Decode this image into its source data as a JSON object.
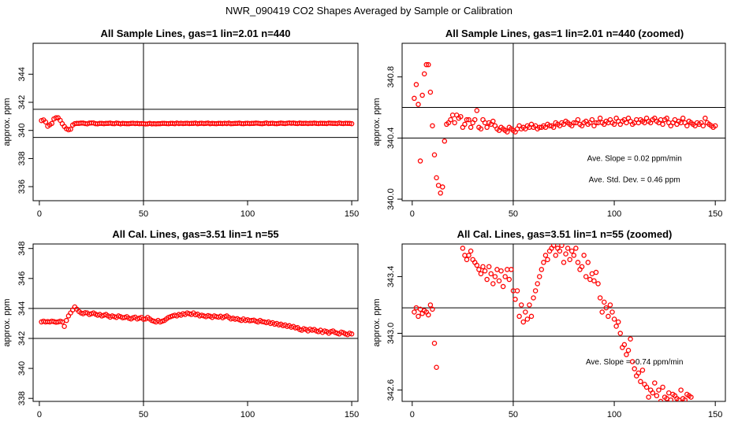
{
  "main_title": "NWR_090419  CO2 Shapes Averaged by Sample or Calibration",
  "chart_data": [
    {
      "type": "scatter",
      "title": "All Sample Lines, gas=1 lin=2.01 n=440",
      "ylabel": "approx. ppm",
      "xlim": [
        -3,
        153
      ],
      "ylim": [
        335,
        346.2
      ],
      "xticks": [
        0,
        50,
        100,
        150
      ],
      "xtick_labels": [
        "0",
        "50",
        "100",
        "150"
      ],
      "yticks": [
        336,
        338,
        340,
        342,
        344
      ],
      "ytick_labels": [
        "336",
        "338",
        "340",
        "342",
        "344"
      ],
      "hlines": [
        339.5,
        341.5
      ],
      "vlines": [
        50
      ],
      "color": "#ff0000",
      "x": [
        1,
        2,
        3,
        4,
        5,
        6,
        7,
        8,
        9,
        10,
        11,
        12,
        13,
        14,
        15,
        16,
        17,
        18,
        19,
        20,
        21,
        22,
        23,
        24,
        25,
        26,
        27,
        28,
        29,
        30,
        31,
        32,
        33,
        34,
        35,
        36,
        37,
        38,
        39,
        40,
        41,
        42,
        43,
        44,
        45,
        46,
        47,
        48,
        49,
        50,
        51,
        52,
        53,
        54,
        55,
        56,
        57,
        58,
        59,
        60,
        61,
        62,
        63,
        64,
        65,
        66,
        67,
        68,
        69,
        70,
        71,
        72,
        73,
        74,
        75,
        76,
        77,
        78,
        79,
        80,
        81,
        82,
        83,
        84,
        85,
        86,
        87,
        88,
        89,
        90,
        91,
        92,
        93,
        94,
        95,
        96,
        97,
        98,
        99,
        100,
        101,
        102,
        103,
        104,
        105,
        106,
        107,
        108,
        109,
        110,
        111,
        112,
        113,
        114,
        115,
        116,
        117,
        118,
        119,
        120,
        121,
        122,
        123,
        124,
        125,
        126,
        127,
        128,
        129,
        130,
        131,
        132,
        133,
        134,
        135,
        136,
        137,
        138,
        139,
        140,
        141,
        142,
        143,
        144,
        145,
        146,
        147,
        148,
        149,
        150
      ],
      "y": [
        340.7,
        340.75,
        340.6,
        340.3,
        340.4,
        340.5,
        340.82,
        340.9,
        340.9,
        340.72,
        340.48,
        340.28,
        340.12,
        340.05,
        340.09,
        340.38,
        340.48,
        340.5,
        340.5,
        340.52,
        340.52,
        340.49,
        340.47,
        340.52,
        340.53,
        340.53,
        340.48,
        340.47,
        340.5,
        340.5,
        340.48,
        340.5,
        340.5,
        340.52,
        340.49,
        340.48,
        340.52,
        340.5,
        340.47,
        340.5,
        340.49,
        340.48,
        340.48,
        340.5,
        340.51,
        340.49,
        340.5,
        340.48,
        340.49,
        340.48,
        340.46,
        340.47,
        340.5,
        340.47,
        340.48,
        340.47,
        340.48,
        340.48,
        340.5,
        340.5,
        340.49,
        340.48,
        340.5,
        340.5,
        340.48,
        340.52,
        340.49,
        340.51,
        340.49,
        340.5,
        340.51,
        340.49,
        340.5,
        340.5,
        340.52,
        340.48,
        340.5,
        340.51,
        340.49,
        340.5,
        340.52,
        340.48,
        340.5,
        340.49,
        340.48,
        340.5,
        340.5,
        340.49,
        340.51,
        340.49,
        340.52,
        340.48,
        340.49,
        340.5,
        340.5,
        340.52,
        340.49,
        340.48,
        340.5,
        340.51,
        340.49,
        340.5,
        340.5,
        340.52,
        340.51,
        340.49,
        340.48,
        340.5,
        340.53,
        340.49,
        340.5,
        340.51,
        340.49,
        340.48,
        340.5,
        340.52,
        340.5,
        340.49,
        340.51,
        340.53,
        340.51,
        340.52,
        340.5,
        340.49,
        340.52,
        340.5,
        340.5,
        340.51,
        340.49,
        340.51,
        340.5,
        340.52,
        340.5,
        340.49,
        340.51,
        340.5,
        340.5,
        340.49,
        340.52,
        340.51,
        340.5,
        340.5,
        340.49,
        340.53,
        340.5,
        340.49,
        340.51,
        340.5,
        340.5,
        340.48
      ]
    },
    {
      "type": "scatter",
      "title": "All Sample Lines, gas=1 lin=2.01 n=440 (zoomed)",
      "ylabel": "approx. ppm",
      "xlim": [
        -5,
        155
      ],
      "ylim": [
        339.99,
        341.02
      ],
      "xticks": [
        0,
        50,
        100,
        150
      ],
      "xtick_labels": [
        "0",
        "50",
        "100",
        "150"
      ],
      "yticks": [
        340.0,
        340.4,
        340.8
      ],
      "ytick_labels": [
        "340.0",
        "340.4",
        "340.8"
      ],
      "hlines": [
        340.4,
        340.6
      ],
      "vlines": [
        50
      ],
      "color": "#ff0000",
      "annotations": [
        {
          "text": "Ave. Slope =  0.02  ppm/min",
          "x": 110,
          "y": 340.25
        },
        {
          "text": "Ave. Std. Dev. =  0.46  ppm",
          "x": 110,
          "y": 340.11
        }
      ],
      "x": [
        1,
        2,
        3,
        4,
        5,
        6,
        7,
        8,
        9,
        10,
        11,
        12,
        13,
        14,
        15,
        16,
        17,
        18,
        19,
        20,
        21,
        22,
        23,
        24,
        25,
        26,
        27,
        28,
        29,
        30,
        31,
        32,
        33,
        34,
        35,
        36,
        37,
        38,
        39,
        40,
        41,
        42,
        43,
        44,
        45,
        46,
        47,
        48,
        49,
        50,
        51,
        52,
        53,
        54,
        55,
        56,
        57,
        58,
        59,
        60,
        61,
        62,
        63,
        64,
        65,
        66,
        67,
        68,
        69,
        70,
        71,
        72,
        73,
        74,
        75,
        76,
        77,
        78,
        79,
        80,
        81,
        82,
        83,
        84,
        85,
        86,
        87,
        88,
        89,
        90,
        91,
        92,
        93,
        94,
        95,
        96,
        97,
        98,
        99,
        100,
        101,
        102,
        103,
        104,
        105,
        106,
        107,
        108,
        109,
        110,
        111,
        112,
        113,
        114,
        115,
        116,
        117,
        118,
        119,
        120,
        121,
        122,
        123,
        124,
        125,
        126,
        127,
        128,
        129,
        130,
        131,
        132,
        133,
        134,
        135,
        136,
        137,
        138,
        139,
        140,
        141,
        142,
        143,
        144,
        145,
        146,
        147,
        148,
        149,
        150
      ],
      "y": [
        340.66,
        340.75,
        340.62,
        340.25,
        340.68,
        340.82,
        340.88,
        340.88,
        340.7,
        340.48,
        340.29,
        340.14,
        340.09,
        340.04,
        340.08,
        340.38,
        340.49,
        340.5,
        340.52,
        340.55,
        340.5,
        340.55,
        340.53,
        340.54,
        340.47,
        340.49,
        340.52,
        340.52,
        340.47,
        340.5,
        340.52,
        340.58,
        340.47,
        340.46,
        340.52,
        340.5,
        340.47,
        340.5,
        340.49,
        340.51,
        340.48,
        340.46,
        340.45,
        340.47,
        340.46,
        340.45,
        340.44,
        340.47,
        340.46,
        340.45,
        340.44,
        340.46,
        340.48,
        340.46,
        340.47,
        340.46,
        340.48,
        340.47,
        340.49,
        340.47,
        340.48,
        340.46,
        340.47,
        340.47,
        340.48,
        340.47,
        340.49,
        340.48,
        340.48,
        340.47,
        340.5,
        340.49,
        340.48,
        340.5,
        340.49,
        340.51,
        340.5,
        340.49,
        340.48,
        340.5,
        340.5,
        340.52,
        340.49,
        340.48,
        340.5,
        340.51,
        340.49,
        340.5,
        340.52,
        340.48,
        340.5,
        340.5,
        340.53,
        340.5,
        340.49,
        340.51,
        340.5,
        340.52,
        340.5,
        340.49,
        340.53,
        340.51,
        340.49,
        340.51,
        340.52,
        340.5,
        340.53,
        340.51,
        340.49,
        340.5,
        340.52,
        340.5,
        340.52,
        340.51,
        340.5,
        340.53,
        340.51,
        340.5,
        340.52,
        340.53,
        340.51,
        340.5,
        340.52,
        340.49,
        340.52,
        340.53,
        340.5,
        340.48,
        340.5,
        340.52,
        340.49,
        340.51,
        340.5,
        340.53,
        340.5,
        340.48,
        340.51,
        340.5,
        340.49,
        340.48,
        340.5,
        340.49,
        340.5,
        340.48,
        340.53,
        340.5,
        340.49,
        340.48,
        340.47,
        340.48
      ]
    },
    {
      "type": "scatter",
      "title": "All Cal. Lines, gas=3.51 lin=1 n=55",
      "ylabel": "approx. ppm",
      "xlim": [
        -3,
        153
      ],
      "ylim": [
        337.8,
        348.3
      ],
      "xticks": [
        0,
        50,
        100,
        150
      ],
      "xtick_labels": [
        "0",
        "50",
        "100",
        "150"
      ],
      "yticks": [
        338,
        340,
        342,
        344,
        346,
        348
      ],
      "ytick_labels": [
        "338",
        "340",
        "342",
        "344",
        "346",
        "348"
      ],
      "hlines": [
        342.0,
        344.0
      ],
      "vlines": [
        50
      ],
      "color": "#ff0000",
      "x": [
        1,
        2,
        3,
        4,
        5,
        6,
        7,
        8,
        9,
        10,
        11,
        12,
        13,
        14,
        15,
        16,
        17,
        18,
        19,
        20,
        21,
        22,
        23,
        24,
        25,
        26,
        27,
        28,
        29,
        30,
        31,
        32,
        33,
        34,
        35,
        36,
        37,
        38,
        39,
        40,
        41,
        42,
        43,
        44,
        45,
        46,
        47,
        48,
        49,
        50,
        51,
        52,
        53,
        54,
        55,
        56,
        57,
        58,
        59,
        60,
        61,
        62,
        63,
        64,
        65,
        66,
        67,
        68,
        69,
        70,
        71,
        72,
        73,
        74,
        75,
        76,
        77,
        78,
        79,
        80,
        81,
        82,
        83,
        84,
        85,
        86,
        87,
        88,
        89,
        90,
        91,
        92,
        93,
        94,
        95,
        96,
        97,
        98,
        99,
        100,
        101,
        102,
        103,
        104,
        105,
        106,
        107,
        108,
        109,
        110,
        111,
        112,
        113,
        114,
        115,
        116,
        117,
        118,
        119,
        120,
        121,
        122,
        123,
        124,
        125,
        126,
        127,
        128,
        129,
        130,
        131,
        132,
        133,
        134,
        135,
        136,
        137,
        138,
        139,
        140,
        141,
        142,
        143,
        144,
        145,
        146,
        147,
        148,
        149,
        150
      ],
      "y": [
        343.1,
        343.15,
        343.1,
        343.12,
        343.1,
        343.15,
        343.12,
        343.08,
        343.1,
        343.15,
        343.1,
        342.8,
        343.2,
        343.5,
        343.7,
        343.9,
        344.1,
        343.95,
        343.8,
        343.7,
        343.65,
        343.72,
        343.7,
        343.6,
        343.65,
        343.7,
        343.62,
        343.55,
        343.6,
        343.5,
        343.55,
        343.6,
        343.5,
        343.42,
        343.5,
        343.45,
        343.4,
        343.5,
        343.45,
        343.38,
        343.4,
        343.45,
        343.35,
        343.3,
        343.38,
        343.42,
        343.3,
        343.35,
        343.4,
        343.28,
        343.3,
        343.4,
        343.3,
        343.2,
        343.15,
        343.1,
        343.2,
        343.1,
        343.15,
        343.2,
        343.3,
        343.4,
        343.45,
        343.5,
        343.55,
        343.5,
        343.6,
        343.55,
        343.65,
        343.6,
        343.7,
        343.65,
        343.6,
        343.7,
        343.58,
        343.62,
        343.5,
        343.55,
        343.5,
        343.45,
        343.52,
        343.48,
        343.4,
        343.5,
        343.45,
        343.42,
        343.48,
        343.38,
        343.45,
        343.5,
        343.4,
        343.3,
        343.35,
        343.28,
        343.32,
        343.25,
        343.2,
        343.3,
        343.2,
        343.25,
        343.18,
        343.2,
        343.22,
        343.15,
        343.1,
        343.2,
        343.12,
        343.1,
        343.05,
        343.1,
        343.0,
        343.05,
        342.95,
        343.0,
        342.9,
        342.95,
        342.85,
        342.9,
        342.8,
        342.85,
        342.75,
        342.8,
        342.7,
        342.72,
        342.6,
        342.55,
        342.65,
        342.6,
        342.5,
        342.62,
        342.55,
        342.6,
        342.5,
        342.45,
        342.55,
        342.4,
        342.5,
        342.45,
        342.35,
        342.45,
        342.5,
        342.4,
        342.35,
        342.3,
        342.42,
        342.38,
        342.3,
        342.25,
        342.35,
        342.3
      ]
    },
    {
      "type": "scatter",
      "title": "All Cal. Lines, gas=3.51 lin=1 n=55 (zoomed)",
      "ylabel": "approx. ppm",
      "xlim": [
        -5,
        155
      ],
      "ylim": [
        342.52,
        343.63
      ],
      "xticks": [
        0,
        50,
        100,
        150
      ],
      "xtick_labels": [
        "0",
        "50",
        "100",
        "150"
      ],
      "yticks": [
        342.6,
        343.0,
        343.4
      ],
      "ytick_labels": [
        "342.6",
        "343.0",
        "343.4"
      ],
      "hlines": [
        342.98,
        343.18
      ],
      "vlines": [
        50
      ],
      "color": "#ff0000",
      "annotations": [
        {
          "text": "Ave. Slope =  -0.74  ppm/min",
          "x": 110,
          "y": 342.78
        }
      ],
      "x": [
        1,
        2,
        3,
        4,
        5,
        6,
        7,
        8,
        9,
        10,
        11,
        12,
        25,
        26,
        27,
        28,
        29,
        30,
        31,
        32,
        33,
        34,
        35,
        36,
        37,
        38,
        39,
        40,
        41,
        42,
        43,
        44,
        45,
        46,
        47,
        48,
        49,
        50,
        51,
        52,
        53,
        54,
        55,
        56,
        57,
        58,
        59,
        60,
        61,
        62,
        63,
        64,
        65,
        66,
        67,
        68,
        69,
        70,
        71,
        72,
        73,
        74,
        75,
        76,
        77,
        78,
        79,
        80,
        81,
        82,
        83,
        84,
        85,
        86,
        87,
        88,
        89,
        90,
        91,
        92,
        93,
        94,
        95,
        96,
        97,
        98,
        99,
        100,
        101,
        102,
        103,
        104,
        105,
        106,
        107,
        108,
        109,
        110,
        111,
        112,
        113,
        114,
        115,
        116,
        117,
        118,
        119,
        120,
        121,
        122,
        123,
        124,
        125,
        126,
        127,
        128,
        129,
        130,
        131,
        132,
        133,
        134,
        135,
        136,
        137,
        138
      ],
      "y": [
        343.15,
        343.18,
        343.12,
        343.17,
        343.14,
        343.16,
        343.15,
        343.13,
        343.2,
        343.17,
        342.93,
        342.76,
        343.6,
        343.55,
        343.52,
        343.55,
        343.58,
        343.52,
        343.5,
        343.48,
        343.45,
        343.42,
        343.47,
        343.44,
        343.38,
        343.47,
        343.42,
        343.35,
        343.4,
        343.45,
        343.37,
        343.44,
        343.33,
        343.4,
        343.45,
        343.38,
        343.45,
        343.3,
        343.24,
        343.3,
        343.12,
        343.2,
        343.08,
        343.15,
        343.1,
        343.2,
        343.12,
        343.25,
        343.3,
        343.35,
        343.4,
        343.45,
        343.5,
        343.55,
        343.52,
        343.58,
        343.6,
        343.62,
        343.55,
        343.6,
        343.58,
        343.62,
        343.5,
        343.56,
        343.6,
        343.52,
        343.58,
        343.55,
        343.6,
        343.5,
        343.45,
        343.47,
        343.55,
        343.4,
        343.5,
        343.38,
        343.42,
        343.37,
        343.43,
        343.35,
        343.25,
        343.15,
        343.22,
        343.18,
        343.12,
        343.2,
        343.15,
        343.1,
        343.05,
        343.08,
        343.0,
        342.9,
        342.92,
        342.85,
        342.88,
        342.96,
        342.8,
        342.75,
        342.7,
        342.72,
        342.66,
        342.74,
        342.64,
        342.62,
        342.55,
        342.6,
        342.58,
        342.65,
        342.56,
        342.6,
        342.52,
        342.62,
        342.55,
        342.54,
        342.58,
        342.53,
        342.57,
        342.56,
        342.54,
        342.53,
        342.6,
        342.54,
        342.53,
        342.57,
        342.56,
        342.55
      ]
    }
  ]
}
